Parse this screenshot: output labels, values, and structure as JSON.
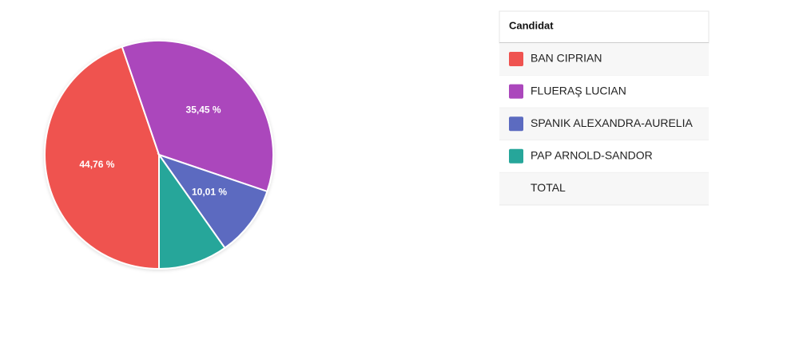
{
  "chart_data": {
    "type": "pie",
    "categories": [
      "BAN CIPRIAN",
      "FLUERAŞ LUCIAN",
      "SPANIK ALEXANDRA-AURELIA",
      "PAP ARNOLD-SANDOR"
    ],
    "values": [
      44.76,
      35.45,
      10.01,
      9.78
    ],
    "value_labels": [
      "44,76 %",
      "35,45 %",
      "10,01 %",
      null
    ],
    "colors": [
      "#ef5350",
      "#ab47bc",
      "#5c6bc0",
      "#26a69a"
    ],
    "legend_header": "Candidat",
    "total_label": "TOTAL"
  }
}
